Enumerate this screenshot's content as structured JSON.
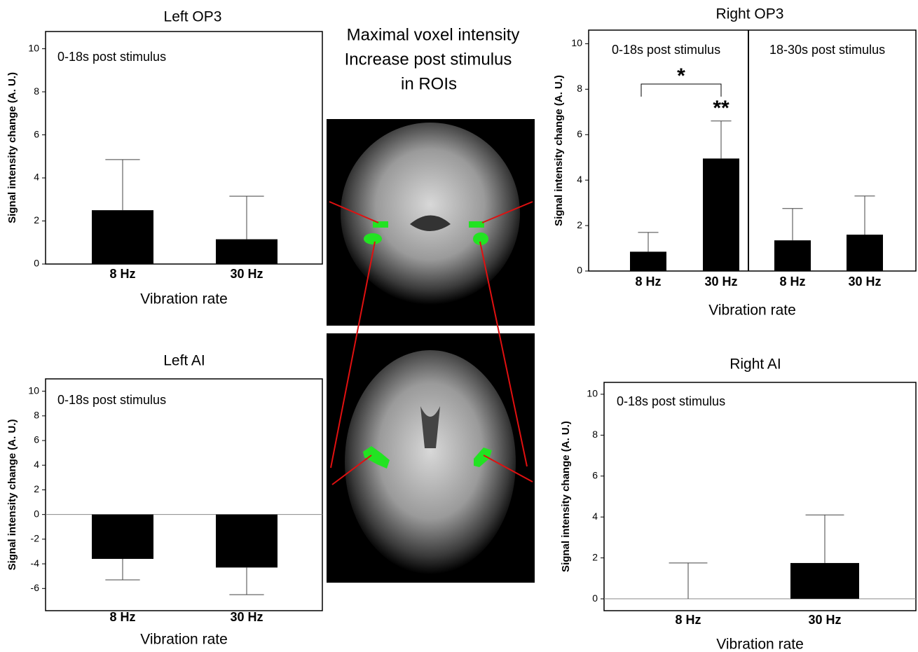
{
  "figure_text": {
    "lines": [
      "Maximal voxel intensity",
      "Increase post stimulus",
      "in ROIs"
    ]
  },
  "chart_data": [
    {
      "type": "bar",
      "title": "Left OP3",
      "xlabel": "Vibration rate",
      "ylabel": "Signal intensity change (A. U.)",
      "annotations": [
        "0-18s post stimulus"
      ],
      "categories": [
        "8 Hz",
        "30 Hz"
      ],
      "values": [
        2.5,
        1.15
      ],
      "errors": [
        2.35,
        2.0
      ],
      "color": "#000000",
      "ylim": [
        0,
        10.8
      ],
      "yticks": [
        0,
        2,
        4,
        6,
        8,
        10
      ]
    },
    {
      "type": "bar",
      "title": "Right OP3",
      "xlabel": "Vibration rate",
      "ylabel": "Signal intensity change (A. U.)",
      "annotations": [
        "0-18s post stimulus",
        "18-30s post stimulus",
        "*",
        "**"
      ],
      "categories": [
        "8 Hz",
        "30 Hz",
        "8 Hz",
        "30 Hz"
      ],
      "values": [
        0.85,
        4.95,
        1.35,
        1.6
      ],
      "errors": [
        0.85,
        1.65,
        1.4,
        1.7
      ],
      "color": "#000000",
      "ylim": [
        0,
        10.6
      ],
      "yticks": [
        0,
        2,
        4,
        6,
        8,
        10
      ]
    },
    {
      "type": "bar",
      "title": "Left AI",
      "xlabel": "Vibration rate",
      "ylabel": "Signal intensity change (A. U.)",
      "annotations": [
        "0-18s post stimulus"
      ],
      "categories": [
        "8 Hz",
        "30 Hz"
      ],
      "values": [
        -3.6,
        -4.3
      ],
      "errors": [
        1.7,
        2.2
      ],
      "color": "#000000",
      "ylim": [
        -7.8,
        11
      ],
      "yticks": [
        -6,
        -4,
        -2,
        0,
        2,
        4,
        6,
        8,
        10
      ]
    },
    {
      "type": "bar",
      "title": "Right AI",
      "xlabel": "Vibration rate",
      "ylabel": "Signal intensity change (A. U.)",
      "annotations": [
        "0-18s post stimulus"
      ],
      "categories": [
        "8 Hz",
        "30 Hz"
      ],
      "values": [
        0,
        1.75
      ],
      "errors": [
        1.75,
        2.35
      ],
      "color": "#000000",
      "ylim": [
        -0.58,
        10.58
      ],
      "yticks": [
        0,
        2,
        4,
        6,
        8,
        10
      ]
    }
  ]
}
